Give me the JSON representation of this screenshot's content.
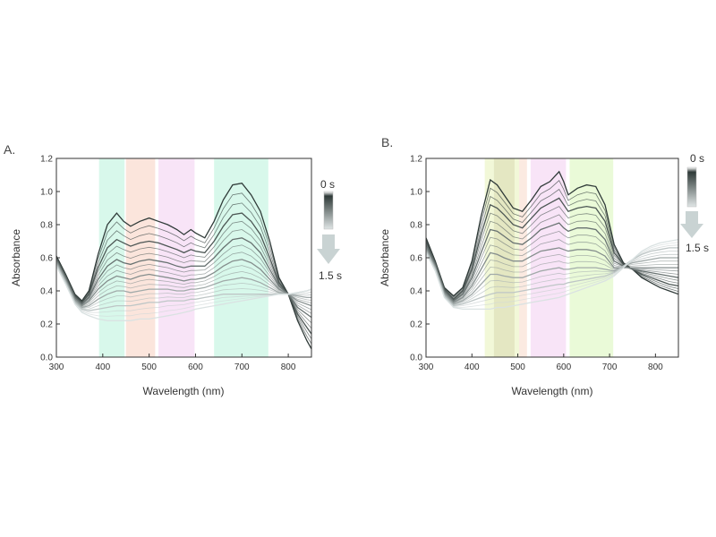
{
  "chart_data": [
    {
      "panel_label": "A.",
      "type": "line",
      "xlabel": "Wavelength (nm)",
      "ylabel": "Absorbance",
      "xlim": [
        300,
        850
      ],
      "ylim": [
        0.0,
        1.2
      ],
      "x_ticks": [
        "300",
        "400",
        "500",
        "600",
        "700",
        "800"
      ],
      "y_ticks": [
        "0.0",
        "0.2",
        "0.4",
        "0.6",
        "0.8",
        "1.0",
        "1.2"
      ],
      "time_start_label": "0 s",
      "time_end_label": "1.5 s",
      "grid": false,
      "bands": [
        {
          "from": 392,
          "to": 447,
          "color": "#b8f2da"
        },
        {
          "from": 450,
          "to": 513,
          "color": "#f8d0c0"
        },
        {
          "from": 520,
          "to": 598,
          "color": "#f3cdf0"
        },
        {
          "from": 640,
          "to": 757,
          "color": "#b8f2da"
        }
      ],
      "x": [
        300,
        320,
        340,
        355,
        370,
        390,
        410,
        430,
        445,
        460,
        480,
        500,
        520,
        540,
        560,
        575,
        590,
        600,
        620,
        640,
        660,
        680,
        700,
        720,
        740,
        760,
        780,
        800,
        820,
        840,
        850
      ],
      "series": [
        {
          "values": [
            0.61,
            0.5,
            0.38,
            0.34,
            0.4,
            0.62,
            0.8,
            0.87,
            0.82,
            0.79,
            0.82,
            0.84,
            0.82,
            0.8,
            0.77,
            0.74,
            0.77,
            0.75,
            0.72,
            0.82,
            0.95,
            1.04,
            1.05,
            0.98,
            0.88,
            0.7,
            0.48,
            0.38,
            0.22,
            0.1,
            0.05
          ]
        },
        {
          "values": [
            0.6,
            0.49,
            0.37,
            0.33,
            0.38,
            0.54,
            0.66,
            0.71,
            0.69,
            0.67,
            0.69,
            0.7,
            0.69,
            0.67,
            0.65,
            0.63,
            0.65,
            0.64,
            0.63,
            0.7,
            0.79,
            0.86,
            0.87,
            0.82,
            0.74,
            0.6,
            0.45,
            0.38,
            0.26,
            0.18,
            0.14
          ]
        },
        {
          "values": [
            0.59,
            0.48,
            0.36,
            0.32,
            0.36,
            0.47,
            0.55,
            0.59,
            0.57,
            0.56,
            0.58,
            0.59,
            0.58,
            0.57,
            0.55,
            0.54,
            0.55,
            0.55,
            0.55,
            0.6,
            0.66,
            0.71,
            0.72,
            0.69,
            0.63,
            0.53,
            0.43,
            0.38,
            0.3,
            0.26,
            0.24
          ]
        },
        {
          "values": [
            0.58,
            0.47,
            0.35,
            0.31,
            0.34,
            0.41,
            0.46,
            0.49,
            0.48,
            0.47,
            0.49,
            0.5,
            0.49,
            0.48,
            0.47,
            0.46,
            0.47,
            0.47,
            0.48,
            0.51,
            0.55,
            0.58,
            0.59,
            0.57,
            0.53,
            0.47,
            0.41,
            0.38,
            0.34,
            0.32,
            0.31
          ]
        },
        {
          "values": [
            0.57,
            0.46,
            0.34,
            0.3,
            0.31,
            0.35,
            0.38,
            0.4,
            0.4,
            0.39,
            0.4,
            0.41,
            0.41,
            0.41,
            0.4,
            0.4,
            0.41,
            0.41,
            0.42,
            0.44,
            0.46,
            0.47,
            0.48,
            0.47,
            0.45,
            0.42,
            0.39,
            0.38,
            0.37,
            0.36,
            0.36
          ]
        },
        {
          "values": [
            0.56,
            0.45,
            0.33,
            0.29,
            0.28,
            0.29,
            0.3,
            0.31,
            0.31,
            0.31,
            0.32,
            0.33,
            0.33,
            0.34,
            0.34,
            0.34,
            0.35,
            0.35,
            0.36,
            0.37,
            0.38,
            0.38,
            0.38,
            0.38,
            0.38,
            0.38,
            0.38,
            0.38,
            0.39,
            0.4,
            0.41
          ]
        },
        {
          "values": [
            0.55,
            0.44,
            0.32,
            0.27,
            0.25,
            0.23,
            0.22,
            0.22,
            0.22,
            0.22,
            0.23,
            0.23,
            0.24,
            0.25,
            0.26,
            0.27,
            0.28,
            0.29,
            0.3,
            0.31,
            0.32,
            0.33,
            0.34,
            0.35,
            0.36,
            0.37,
            0.38,
            0.38,
            0.39,
            0.4,
            0.41
          ]
        }
      ]
    },
    {
      "panel_label": "B.",
      "type": "line",
      "xlabel": "Wavelength (nm)",
      "ylabel": "Absorbance",
      "xlim": [
        300,
        850
      ],
      "ylim": [
        0.0,
        1.2
      ],
      "x_ticks": [
        "300",
        "400",
        "500",
        "600",
        "700",
        "800"
      ],
      "y_ticks": [
        "0.0",
        "0.2",
        "0.4",
        "0.6",
        "0.8",
        "1.0",
        "1.2"
      ],
      "time_start_label": "0 s",
      "time_end_label": "1.5 s",
      "grid": false,
      "bands": [
        {
          "from": 428,
          "to": 503,
          "color": "#e8f2b8"
        },
        {
          "from": 448,
          "to": 493,
          "color": "#d9d9b0"
        },
        {
          "from": 503,
          "to": 520,
          "color": "#f8d8c8"
        },
        {
          "from": 528,
          "to": 605,
          "color": "#f3cdf0"
        },
        {
          "from": 613,
          "to": 708,
          "color": "#d8f5b8"
        }
      ],
      "x": [
        300,
        320,
        340,
        360,
        380,
        400,
        420,
        440,
        455,
        470,
        490,
        510,
        530,
        550,
        570,
        590,
        600,
        610,
        630,
        650,
        670,
        690,
        710,
        730,
        750,
        770,
        790,
        810,
        830,
        850
      ],
      "series": [
        {
          "values": [
            0.72,
            0.58,
            0.42,
            0.37,
            0.42,
            0.58,
            0.85,
            1.07,
            1.04,
            0.98,
            0.9,
            0.88,
            0.95,
            1.03,
            1.06,
            1.12,
            1.06,
            0.98,
            1.02,
            1.04,
            1.03,
            0.92,
            0.68,
            0.57,
            0.53,
            0.48,
            0.45,
            0.42,
            0.4,
            0.38
          ]
        },
        {
          "values": [
            0.7,
            0.57,
            0.41,
            0.35,
            0.4,
            0.53,
            0.74,
            0.92,
            0.9,
            0.86,
            0.8,
            0.78,
            0.84,
            0.9,
            0.93,
            0.96,
            0.92,
            0.88,
            0.9,
            0.91,
            0.9,
            0.82,
            0.63,
            0.56,
            0.53,
            0.5,
            0.48,
            0.46,
            0.44,
            0.43
          ]
        },
        {
          "values": [
            0.68,
            0.56,
            0.4,
            0.34,
            0.38,
            0.48,
            0.63,
            0.77,
            0.76,
            0.73,
            0.69,
            0.68,
            0.72,
            0.77,
            0.79,
            0.81,
            0.78,
            0.76,
            0.78,
            0.78,
            0.77,
            0.71,
            0.58,
            0.55,
            0.53,
            0.52,
            0.51,
            0.5,
            0.49,
            0.48
          ]
        },
        {
          "values": [
            0.66,
            0.55,
            0.39,
            0.33,
            0.36,
            0.43,
            0.53,
            0.63,
            0.62,
            0.6,
            0.58,
            0.58,
            0.61,
            0.64,
            0.65,
            0.66,
            0.65,
            0.64,
            0.65,
            0.65,
            0.64,
            0.61,
            0.54,
            0.54,
            0.54,
            0.54,
            0.54,
            0.54,
            0.54,
            0.54
          ]
        },
        {
          "values": [
            0.65,
            0.54,
            0.38,
            0.32,
            0.34,
            0.38,
            0.44,
            0.5,
            0.5,
            0.49,
            0.48,
            0.48,
            0.5,
            0.52,
            0.53,
            0.54,
            0.53,
            0.53,
            0.54,
            0.54,
            0.54,
            0.53,
            0.52,
            0.55,
            0.57,
            0.58,
            0.59,
            0.6,
            0.6,
            0.6
          ]
        },
        {
          "values": [
            0.64,
            0.53,
            0.37,
            0.31,
            0.32,
            0.34,
            0.36,
            0.38,
            0.39,
            0.39,
            0.39,
            0.4,
            0.41,
            0.42,
            0.43,
            0.44,
            0.44,
            0.45,
            0.46,
            0.47,
            0.48,
            0.49,
            0.51,
            0.55,
            0.59,
            0.62,
            0.64,
            0.65,
            0.66,
            0.66
          ]
        },
        {
          "values": [
            0.63,
            0.52,
            0.36,
            0.3,
            0.29,
            0.29,
            0.29,
            0.29,
            0.3,
            0.3,
            0.31,
            0.32,
            0.33,
            0.34,
            0.35,
            0.36,
            0.37,
            0.38,
            0.4,
            0.42,
            0.44,
            0.46,
            0.49,
            0.54,
            0.59,
            0.64,
            0.67,
            0.69,
            0.7,
            0.71
          ]
        }
      ]
    }
  ]
}
